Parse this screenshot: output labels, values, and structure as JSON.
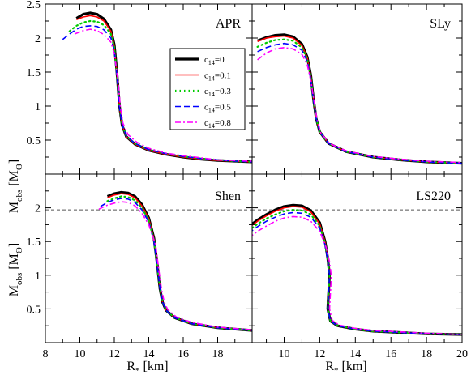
{
  "figure": {
    "ylabel": {
      "main": "M",
      "sub": "obs",
      "unit_open": " [M",
      "unit_sub": "Θ",
      "unit_close": "]"
    },
    "xlabel": {
      "main": "R",
      "sub": "*",
      "unit": " [km]"
    },
    "reference_line": {
      "y": 1.97,
      "style": "dashed",
      "color": "#555555"
    }
  },
  "series_styles": [
    {
      "name_main": "c",
      "name_sub": "14",
      "name_value": "=0",
      "color": "#000000",
      "dash": "",
      "width": 3.2
    },
    {
      "name_main": "c",
      "name_sub": "14",
      "name_value": "=0.1",
      "color": "#ff0000",
      "dash": "",
      "width": 1.6
    },
    {
      "name_main": "c",
      "name_sub": "14",
      "name_value": "=0.3",
      "color": "#00cc00",
      "dash": "1.5 4",
      "width": 2.2
    },
    {
      "name_main": "c",
      "name_sub": "14",
      "name_value": "=0.5",
      "color": "#0000ff",
      "dash": "7 4",
      "width": 1.6
    },
    {
      "name_main": "c",
      "name_sub": "14",
      "name_value": "=0.8",
      "color": "#ff00ff",
      "dash": "7 3 2 3",
      "width": 1.6
    }
  ],
  "chart_data": [
    {
      "type": "line",
      "label": "APR",
      "xlim": [
        8,
        20
      ],
      "ylim": [
        0,
        2.5
      ],
      "yticks": [
        0.5,
        1,
        1.5,
        2,
        2.5
      ],
      "xticks": [
        8,
        10,
        12,
        14,
        16,
        18
      ],
      "show_legend": true,
      "series": [
        {
          "x": [
            9.8,
            10.2,
            10.6,
            11.0,
            11.4,
            11.8,
            12.0,
            12.15,
            12.3,
            12.45,
            12.7,
            13.2,
            14,
            15,
            16,
            17,
            18,
            19,
            20
          ],
          "y": [
            2.29,
            2.35,
            2.37,
            2.35,
            2.28,
            2.12,
            1.9,
            1.5,
            1.0,
            0.72,
            0.55,
            0.44,
            0.35,
            0.29,
            0.25,
            0.22,
            0.2,
            0.19,
            0.18
          ]
        },
        {
          "x": [
            9.8,
            10.2,
            10.6,
            11.0,
            11.4,
            11.8,
            12.0,
            12.15,
            12.3,
            12.45,
            12.7,
            13.2,
            14,
            15,
            16,
            17,
            18,
            19,
            20
          ],
          "y": [
            2.27,
            2.31,
            2.33,
            2.31,
            2.25,
            2.1,
            1.88,
            1.48,
            0.99,
            0.72,
            0.55,
            0.44,
            0.35,
            0.29,
            0.25,
            0.22,
            0.2,
            0.19,
            0.18
          ]
        },
        {
          "x": [
            9.4,
            9.8,
            10.2,
            10.6,
            11.0,
            11.4,
            11.8,
            12.0,
            12.15,
            12.3,
            12.45,
            12.7,
            13.2,
            14,
            15,
            16,
            17,
            18,
            19,
            20
          ],
          "y": [
            2.1,
            2.18,
            2.23,
            2.25,
            2.24,
            2.19,
            2.06,
            1.86,
            1.47,
            0.99,
            0.73,
            0.56,
            0.45,
            0.36,
            0.3,
            0.26,
            0.23,
            0.21,
            0.19,
            0.18
          ]
        },
        {
          "x": [
            9.0,
            9.4,
            9.8,
            10.2,
            10.6,
            11.0,
            11.4,
            11.8,
            12.0,
            12.15,
            12.3,
            12.45,
            12.7,
            13.2,
            14,
            15,
            16,
            17,
            18,
            19,
            20
          ],
          "y": [
            1.98,
            2.06,
            2.13,
            2.17,
            2.18,
            2.17,
            2.12,
            2.0,
            1.82,
            1.45,
            0.98,
            0.73,
            0.56,
            0.45,
            0.36,
            0.3,
            0.26,
            0.23,
            0.21,
            0.19,
            0.18
          ]
        },
        {
          "x": [
            9.7,
            10.2,
            10.6,
            11.0,
            11.4,
            11.8,
            12.0,
            12.2,
            12.35,
            12.5,
            12.8,
            13.3,
            14,
            15,
            16,
            17,
            18,
            19,
            20
          ],
          "y": [
            2.06,
            2.11,
            2.13,
            2.11,
            2.05,
            1.94,
            1.77,
            1.4,
            1.0,
            0.75,
            0.58,
            0.47,
            0.38,
            0.31,
            0.27,
            0.24,
            0.21,
            0.2,
            0.19
          ]
        }
      ]
    },
    {
      "type": "line",
      "label": "SLy",
      "xlim": [
        8,
        20
      ],
      "ylim": [
        0,
        2.5
      ],
      "yticks": [
        0.5,
        1,
        1.5,
        2
      ],
      "xticks": [
        10,
        12,
        14,
        16,
        18
      ],
      "show_legend": false,
      "series": [
        {
          "x": [
            8.5,
            9.0,
            9.5,
            10.0,
            10.5,
            11.0,
            11.3,
            11.5,
            11.65,
            11.8,
            12.0,
            12.5,
            13.5,
            15,
            16.5,
            18,
            20
          ],
          "y": [
            1.96,
            2.01,
            2.04,
            2.05,
            2.02,
            1.91,
            1.72,
            1.45,
            1.1,
            0.82,
            0.62,
            0.45,
            0.33,
            0.25,
            0.21,
            0.18,
            0.16
          ]
        },
        {
          "x": [
            8.5,
            9.0,
            9.5,
            10.0,
            10.5,
            11.0,
            11.3,
            11.5,
            11.65,
            11.8,
            12.0,
            12.5,
            13.5,
            15,
            16.5,
            18,
            20
          ],
          "y": [
            1.95,
            2.0,
            2.02,
            2.03,
            2.0,
            1.89,
            1.71,
            1.44,
            1.1,
            0.82,
            0.62,
            0.45,
            0.33,
            0.25,
            0.21,
            0.18,
            0.16
          ]
        },
        {
          "x": [
            8.5,
            9.0,
            9.5,
            10.0,
            10.5,
            11.0,
            11.3,
            11.5,
            11.65,
            11.8,
            12.0,
            12.5,
            13.5,
            15,
            16.5,
            18,
            20
          ],
          "y": [
            1.87,
            1.93,
            1.97,
            1.98,
            1.96,
            1.86,
            1.69,
            1.42,
            1.09,
            0.82,
            0.62,
            0.45,
            0.33,
            0.25,
            0.21,
            0.18,
            0.16
          ]
        },
        {
          "x": [
            8.5,
            9.0,
            9.5,
            10.0,
            10.5,
            11.0,
            11.3,
            11.5,
            11.65,
            11.8,
            12.0,
            12.5,
            13.5,
            15,
            16.5,
            18,
            20
          ],
          "y": [
            1.8,
            1.86,
            1.9,
            1.92,
            1.9,
            1.82,
            1.66,
            1.4,
            1.08,
            0.82,
            0.62,
            0.45,
            0.33,
            0.25,
            0.21,
            0.18,
            0.16
          ]
        },
        {
          "x": [
            8.5,
            9.0,
            9.5,
            10.0,
            10.5,
            11.0,
            11.3,
            11.5,
            11.7,
            11.85,
            12.05,
            12.55,
            13.5,
            15,
            16.5,
            18,
            20
          ],
          "y": [
            1.68,
            1.78,
            1.84,
            1.86,
            1.84,
            1.76,
            1.61,
            1.37,
            1.05,
            0.8,
            0.61,
            0.45,
            0.34,
            0.26,
            0.22,
            0.19,
            0.17
          ]
        }
      ]
    },
    {
      "type": "line",
      "label": "Shen",
      "xlim": [
        8,
        20
      ],
      "ylim": [
        0,
        2.5
      ],
      "yticks": [
        0.5,
        1,
        1.5,
        2
      ],
      "xticks": [
        8,
        10,
        12,
        14,
        16,
        18
      ],
      "show_legend": false,
      "series": [
        {
          "x": [
            11.6,
            12.0,
            12.4,
            12.8,
            13.2,
            13.6,
            14.0,
            14.3,
            14.5,
            14.65,
            14.8,
            15.0,
            15.5,
            16.5,
            18,
            20
          ],
          "y": [
            2.17,
            2.21,
            2.23,
            2.22,
            2.17,
            2.05,
            1.85,
            1.55,
            1.15,
            0.8,
            0.6,
            0.48,
            0.37,
            0.28,
            0.22,
            0.18
          ]
        },
        {
          "x": [
            11.6,
            12.0,
            12.4,
            12.8,
            13.2,
            13.6,
            14.0,
            14.3,
            14.5,
            14.65,
            14.8,
            15.0,
            15.5,
            16.5,
            18,
            20
          ],
          "y": [
            2.15,
            2.19,
            2.21,
            2.2,
            2.15,
            2.03,
            1.84,
            1.54,
            1.14,
            0.8,
            0.6,
            0.48,
            0.37,
            0.28,
            0.22,
            0.18
          ]
        },
        {
          "x": [
            11.6,
            12.0,
            12.4,
            12.8,
            13.2,
            13.6,
            14.0,
            14.3,
            14.5,
            14.65,
            14.8,
            15.0,
            15.5,
            16.5,
            18,
            20
          ],
          "y": [
            2.1,
            2.14,
            2.17,
            2.16,
            2.11,
            2.0,
            1.81,
            1.52,
            1.13,
            0.8,
            0.6,
            0.48,
            0.37,
            0.28,
            0.22,
            0.18
          ]
        },
        {
          "x": [
            11.2,
            11.6,
            12.0,
            12.4,
            12.8,
            13.2,
            13.6,
            14.0,
            14.3,
            14.5,
            14.65,
            14.8,
            15.0,
            15.5,
            16.5,
            18,
            20
          ],
          "y": [
            2.02,
            2.08,
            2.12,
            2.14,
            2.13,
            2.08,
            1.97,
            1.79,
            1.5,
            1.12,
            0.8,
            0.6,
            0.48,
            0.37,
            0.28,
            0.22,
            0.18
          ]
        },
        {
          "x": [
            11.1,
            11.6,
            12.0,
            12.4,
            12.8,
            13.2,
            13.6,
            14.0,
            14.4,
            14.6,
            14.75,
            14.9,
            15.1,
            15.6,
            16.5,
            18,
            20
          ],
          "y": [
            1.98,
            2.04,
            2.07,
            2.09,
            2.08,
            2.03,
            1.92,
            1.75,
            1.45,
            1.05,
            0.78,
            0.6,
            0.49,
            0.38,
            0.3,
            0.23,
            0.19
          ]
        }
      ]
    },
    {
      "type": "line",
      "label": "LS220",
      "xlim": [
        8,
        20
      ],
      "ylim": [
        0,
        2.5
      ],
      "yticks": [
        0.5,
        1,
        1.5,
        2
      ],
      "xticks": [
        10,
        12,
        14,
        16,
        18,
        20
      ],
      "show_legend": false,
      "series": [
        {
          "x": [
            8,
            8.5,
            9,
            9.5,
            10,
            10.5,
            11,
            11.5,
            12.0,
            12.3,
            12.45,
            12.55,
            12.5,
            12.45,
            12.6,
            13,
            14,
            15,
            16.5,
            18,
            20
          ],
          "y": [
            1.72,
            1.82,
            1.9,
            1.97,
            2.02,
            2.04,
            2.03,
            1.96,
            1.78,
            1.5,
            1.25,
            1.0,
            0.75,
            0.5,
            0.32,
            0.25,
            0.2,
            0.17,
            0.15,
            0.13,
            0.12
          ]
        },
        {
          "x": [
            8,
            8.5,
            9,
            9.5,
            10,
            10.5,
            11,
            11.5,
            12.0,
            12.3,
            12.45,
            12.55,
            12.5,
            12.45,
            12.6,
            13,
            14,
            15,
            16.5,
            18,
            20
          ],
          "y": [
            1.7,
            1.8,
            1.88,
            1.95,
            2.0,
            2.02,
            2.01,
            1.94,
            1.76,
            1.49,
            1.24,
            1.0,
            0.75,
            0.5,
            0.32,
            0.25,
            0.2,
            0.17,
            0.15,
            0.13,
            0.12
          ]
        },
        {
          "x": [
            8,
            8.5,
            9,
            9.5,
            10,
            10.5,
            11,
            11.5,
            12.0,
            12.3,
            12.45,
            12.55,
            12.5,
            12.45,
            12.6,
            13,
            14,
            15,
            16.5,
            18,
            20
          ],
          "y": [
            1.66,
            1.76,
            1.84,
            1.9,
            1.95,
            1.97,
            1.96,
            1.9,
            1.73,
            1.47,
            1.23,
            1.0,
            0.75,
            0.5,
            0.32,
            0.25,
            0.2,
            0.17,
            0.15,
            0.13,
            0.12
          ]
        },
        {
          "x": [
            8,
            8.5,
            9,
            9.5,
            10,
            10.5,
            11,
            11.5,
            12.0,
            12.3,
            12.45,
            12.55,
            12.5,
            12.45,
            12.6,
            13,
            14,
            15,
            16.5,
            18,
            20
          ],
          "y": [
            1.62,
            1.72,
            1.8,
            1.86,
            1.91,
            1.93,
            1.92,
            1.86,
            1.7,
            1.45,
            1.22,
            1.0,
            0.75,
            0.5,
            0.32,
            0.25,
            0.2,
            0.17,
            0.15,
            0.13,
            0.12
          ]
        },
        {
          "x": [
            8,
            8.5,
            9,
            9.5,
            10,
            10.5,
            11,
            11.5,
            12.0,
            12.35,
            12.55,
            12.65,
            12.6,
            12.55,
            12.7,
            13.1,
            14,
            15,
            16.5,
            18,
            20
          ],
          "y": [
            1.55,
            1.65,
            1.73,
            1.8,
            1.85,
            1.87,
            1.86,
            1.8,
            1.65,
            1.42,
            1.2,
            0.98,
            0.74,
            0.5,
            0.33,
            0.26,
            0.21,
            0.18,
            0.16,
            0.14,
            0.12
          ]
        }
      ]
    }
  ]
}
